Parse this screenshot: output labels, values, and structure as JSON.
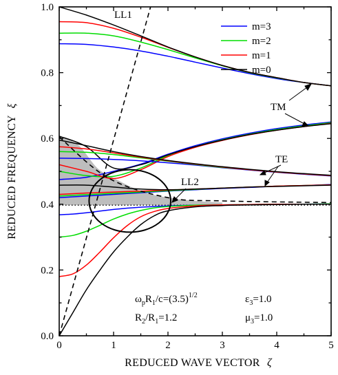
{
  "chart_data": {
    "type": "line",
    "xlabel": "REDUCED WAVE VECTOR",
    "xlabel_symbol": "ζ",
    "ylabel": "REDUCED FREQUENCY",
    "ylabel_symbol": "ξ",
    "xlim": [
      0,
      5
    ],
    "ylim": [
      0.0,
      1.0
    ],
    "xticks": [
      "0",
      "1",
      "2",
      "3",
      "4",
      "5"
    ],
    "yticks": [
      "0.0",
      "0.2",
      "0.4",
      "0.6",
      "0.8",
      "1.0"
    ],
    "legend_position": "top-right",
    "legend": [
      {
        "label": "m=3",
        "color": "#0000ff"
      },
      {
        "label": "m=2",
        "color": "#00dd00"
      },
      {
        "label": "m=1",
        "color": "#ff0000"
      },
      {
        "label": "m=0",
        "color": "#000000"
      }
    ],
    "light_lines": [
      {
        "label": "LL1",
        "x": [
          0,
          1.68
        ],
        "y": [
          0,
          1.0
        ]
      },
      {
        "label": "LL2",
        "x": [
          0,
          0.9,
          2.0,
          3.0,
          5.0
        ],
        "y": [
          0.605,
          0.48,
          0.42,
          0.41,
          0.405
        ]
      }
    ],
    "plasma_line": {
      "x": [
        0,
        5
      ],
      "y": [
        0.397,
        0.397
      ]
    },
    "shaded_region": {
      "x": [
        0,
        0.35,
        0.7,
        1.0,
        1.5,
        2.0,
        2.5,
        3.0
      ],
      "y_top": [
        0.605,
        0.58,
        0.51,
        0.48,
        0.44,
        0.42,
        0.41,
        0.405
      ],
      "y_bottom": [
        0.397,
        0.397,
        0.397,
        0.397,
        0.397,
        0.397,
        0.397,
        0.397
      ]
    },
    "series": [
      {
        "group": "upper-TM",
        "x": [
          0,
          0.5,
          1,
          1.5,
          2,
          2.5,
          3,
          3.5,
          4,
          4.5,
          5
        ],
        "m0": [
          1.0,
          0.975,
          0.945,
          0.912,
          0.878,
          0.848,
          0.822,
          0.801,
          0.785,
          0.77,
          0.76
        ],
        "m1": [
          0.955,
          0.952,
          0.935,
          0.908,
          0.877,
          0.848,
          0.822,
          0.801,
          0.785,
          0.77,
          0.76
        ],
        "m2": [
          0.92,
          0.92,
          0.912,
          0.893,
          0.87,
          0.845,
          0.821,
          0.8,
          0.784,
          0.77,
          0.76
        ],
        "m3": [
          0.888,
          0.886,
          0.878,
          0.866,
          0.85,
          0.832,
          0.814,
          0.797,
          0.782,
          0.77,
          0.76
        ]
      },
      {
        "group": "middle-TM",
        "x": [
          0,
          0.5,
          1,
          1.5,
          2,
          2.5,
          3,
          3.5,
          4,
          4.5,
          5
        ],
        "m0": [
          0.607,
          0.575,
          0.51,
          0.52,
          0.55,
          0.575,
          0.595,
          0.612,
          0.625,
          0.636,
          0.645
        ],
        "m1": [
          0.52,
          0.5,
          0.478,
          0.505,
          0.545,
          0.573,
          0.594,
          0.611,
          0.625,
          0.636,
          0.646
        ],
        "m2": [
          0.5,
          0.487,
          0.485,
          0.51,
          0.548,
          0.575,
          0.596,
          0.613,
          0.627,
          0.638,
          0.648
        ],
        "m3": [
          0.475,
          0.482,
          0.5,
          0.522,
          0.552,
          0.578,
          0.599,
          0.616,
          0.63,
          0.641,
          0.65
        ]
      },
      {
        "group": "upper-TE",
        "x": [
          0,
          0.5,
          1,
          1.5,
          2,
          2.5,
          3,
          3.5,
          4,
          4.5,
          5
        ],
        "m0": [
          0.595,
          0.578,
          0.56,
          0.545,
          0.533,
          0.523,
          0.514,
          0.506,
          0.499,
          0.493,
          0.488
        ],
        "m1": [
          0.575,
          0.568,
          0.556,
          0.543,
          0.532,
          0.522,
          0.513,
          0.505,
          0.498,
          0.492,
          0.487
        ],
        "m2": [
          0.56,
          0.558,
          0.551,
          0.541,
          0.531,
          0.521,
          0.512,
          0.505,
          0.498,
          0.492,
          0.487
        ],
        "m3": [
          0.54,
          0.539,
          0.536,
          0.532,
          0.526,
          0.519,
          0.511,
          0.504,
          0.497,
          0.491,
          0.486
        ]
      },
      {
        "group": "lower-TE",
        "x": [
          0,
          0.5,
          1,
          1.5,
          2,
          2.5,
          3,
          3.5,
          4,
          4.5,
          5
        ],
        "m0": [
          0.458,
          0.458,
          0.452,
          0.446,
          0.444,
          0.446,
          0.449,
          0.452,
          0.454,
          0.456,
          0.458
        ],
        "m1": [
          0.43,
          0.434,
          0.437,
          0.44,
          0.443,
          0.446,
          0.449,
          0.452,
          0.455,
          0.457,
          0.459
        ],
        "m2": [
          0.425,
          0.429,
          0.433,
          0.437,
          0.441,
          0.445,
          0.449,
          0.452,
          0.455,
          0.457,
          0.459
        ],
        "m3": [
          0.42,
          0.425,
          0.43,
          0.435,
          0.44,
          0.444,
          0.448,
          0.451,
          0.455,
          0.457,
          0.46
        ]
      },
      {
        "group": "lower-TM",
        "x": [
          0,
          0.25,
          0.5,
          0.75,
          1,
          1.25,
          1.5,
          1.75,
          2,
          2.5,
          3,
          3.5,
          4,
          4.5,
          5
        ],
        "m0": [
          0.0,
          0.07,
          0.14,
          0.2,
          0.255,
          0.3,
          0.338,
          0.365,
          0.38,
          0.392,
          0.396,
          0.398,
          0.399,
          0.4,
          0.4
        ],
        "m1": [
          0.18,
          0.188,
          0.215,
          0.255,
          0.298,
          0.335,
          0.362,
          0.378,
          0.387,
          0.395,
          0.398,
          0.399,
          0.4,
          0.4,
          0.4
        ],
        "m2": [
          0.3,
          0.305,
          0.318,
          0.336,
          0.355,
          0.37,
          0.381,
          0.389,
          0.393,
          0.397,
          0.398,
          0.399,
          0.4,
          0.4,
          0.401
        ],
        "m3": [
          0.368,
          0.37,
          0.374,
          0.379,
          0.384,
          0.388,
          0.391,
          0.393,
          0.395,
          0.397,
          0.398,
          0.399,
          0.4,
          0.4,
          0.401
        ]
      }
    ],
    "ellipse": {
      "cx": 1.3,
      "cy": 0.41,
      "rx": 0.75,
      "ry": 0.095
    },
    "annotations": {
      "ll1": "LL1",
      "ll2": "LL2",
      "tm": "TM",
      "te": "TE",
      "param1_main": "ω",
      "param1_sub1": "p",
      "param1_mid": "R",
      "param1_sub2": "1",
      "param1_tail": "/c=(3.5)",
      "param1_sup": "1/2",
      "param2_a": "R",
      "param2_sub1": "2",
      "param2_b": "/R",
      "param2_sub2": "1",
      "param2_tail": "=1.2",
      "eps_main": "ε",
      "eps_sub": "3",
      "eps_tail": "=1.0",
      "mu_main": "μ",
      "mu_sub": "3",
      "mu_tail": "=1.0"
    }
  }
}
